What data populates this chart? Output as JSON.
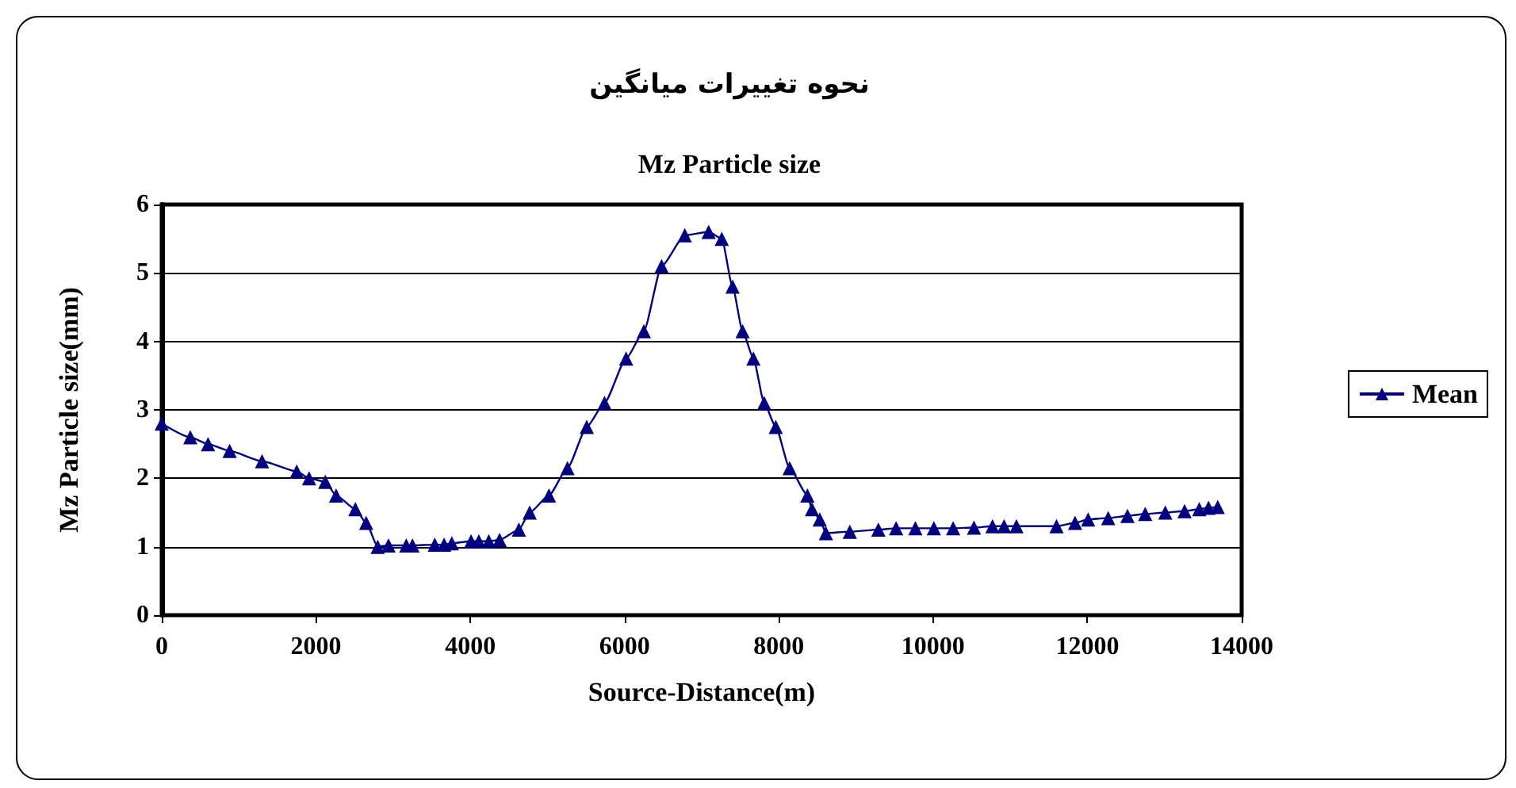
{
  "chart_data": {
    "type": "line",
    "title": "نحوه تغییرات میانگین",
    "subtitle": "Mz Particle size",
    "xlabel": "Source-Distance(m)",
    "ylabel": "Mz Particle size(mm)",
    "x": [
      0,
      370,
      600,
      880,
      1300,
      1750,
      1910,
      2120,
      2260,
      2510,
      2650,
      2800,
      2940,
      3170,
      3250,
      3540,
      3660,
      3760,
      4010,
      4110,
      4240,
      4380,
      4630,
      4770,
      5020,
      5260,
      5510,
      5740,
      6020,
      6250,
      6480,
      6780,
      7090,
      7260,
      7400,
      7530,
      7670,
      7810,
      7960,
      8140,
      8370,
      8430,
      8530,
      8610,
      8920,
      9290,
      9520,
      9770,
      10010,
      10260,
      10530,
      10770,
      10920,
      11080,
      11600,
      11840,
      12010,
      12270,
      12520,
      12750,
      13010,
      13260,
      13450,
      13570,
      13690
    ],
    "series": [
      {
        "name": "Mean",
        "color": "#000080",
        "values": [
          2.8,
          2.6,
          2.5,
          2.4,
          2.25,
          2.1,
          2.0,
          1.95,
          1.75,
          1.55,
          1.35,
          1.0,
          1.02,
          1.02,
          1.02,
          1.03,
          1.03,
          1.05,
          1.08,
          1.08,
          1.08,
          1.1,
          1.25,
          1.5,
          1.75,
          2.15,
          2.75,
          3.1,
          3.75,
          4.15,
          5.1,
          5.55,
          5.6,
          5.5,
          4.8,
          4.15,
          3.75,
          3.1,
          2.75,
          2.15,
          1.75,
          1.55,
          1.4,
          1.2,
          1.22,
          1.25,
          1.27,
          1.27,
          1.27,
          1.27,
          1.28,
          1.3,
          1.3,
          1.3,
          1.3,
          1.35,
          1.4,
          1.42,
          1.45,
          1.48,
          1.5,
          1.52,
          1.55,
          1.57,
          1.58
        ]
      }
    ],
    "xlim": [
      0,
      14000
    ],
    "xticks": [
      0,
      2000,
      4000,
      6000,
      8000,
      10000,
      12000,
      14000
    ],
    "ylim": [
      0,
      6
    ],
    "yticks": [
      0,
      1,
      2,
      3,
      4,
      5,
      6
    ],
    "grid": "y",
    "legend": "right",
    "marker": "triangle",
    "line_style": "solid"
  }
}
